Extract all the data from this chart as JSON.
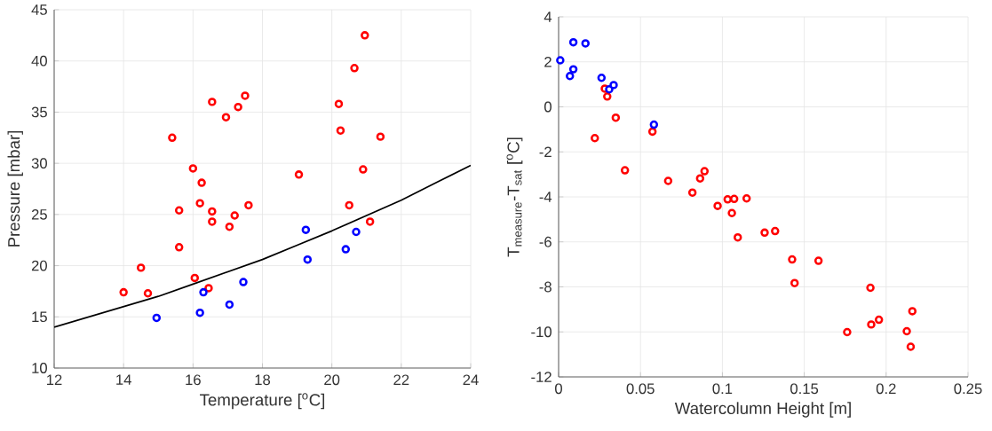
{
  "chart_data": [
    {
      "type": "scatter",
      "xlabel": "Temperature [$^{o}$C]",
      "ylabel": "Pressure [mbar]",
      "xlim": [
        12,
        24
      ],
      "ylim": [
        10,
        45
      ],
      "xticks": [
        12,
        14,
        16,
        18,
        20,
        22,
        24
      ],
      "yticks": [
        10,
        15,
        20,
        25,
        30,
        35,
        40,
        45
      ],
      "grid": true,
      "series": [
        {
          "type": "scatter",
          "marker": "circle",
          "color": "#ff0000",
          "x": [
            14,
            14.5,
            14.7,
            15.4,
            15.6,
            15.6,
            16.0,
            16.05,
            16.2,
            16.25,
            16.45,
            16.55,
            16.55,
            16.55,
            16.95,
            17.05,
            17.2,
            17.3,
            17.5,
            17.6,
            19.05,
            20.2,
            20.25,
            20.5,
            20.65,
            20.9,
            20.95,
            21.1,
            21.4
          ],
          "values": [
            17.4,
            19.8,
            17.3,
            32.5,
            25.4,
            21.8,
            29.5,
            18.8,
            26.1,
            28.1,
            17.8,
            36.0,
            25.3,
            24.3,
            34.5,
            23.8,
            24.9,
            35.5,
            36.6,
            25.9,
            28.9,
            35.8,
            33.2,
            25.9,
            39.3,
            29.4,
            42.5,
            24.3,
            32.6
          ]
        },
        {
          "type": "scatter",
          "marker": "circle",
          "color": "#0000ff",
          "x": [
            14.95,
            16.2,
            16.3,
            17.05,
            17.45,
            19.25,
            19.3,
            20.4,
            20.7
          ],
          "values": [
            14.9,
            15.4,
            17.4,
            16.2,
            18.4,
            23.5,
            20.6,
            21.6,
            23.3
          ]
        },
        {
          "type": "line",
          "color": "#000000",
          "x": [
            12,
            13,
            14,
            15,
            16,
            17,
            18,
            19,
            20,
            21,
            22,
            23,
            24
          ],
          "values": [
            14.0,
            15.0,
            16.0,
            17.0,
            18.2,
            19.4,
            20.6,
            22.0,
            23.4,
            24.9,
            26.4,
            28.1,
            29.8
          ]
        }
      ]
    },
    {
      "type": "scatter",
      "xlabel": "Watercolumn Height [m]",
      "ylabel": "T$_{measure}$-T$_{sat}$ [$^{o}$C]",
      "xlim": [
        0,
        0.25
      ],
      "ylim": [
        -12,
        4
      ],
      "xticks": [
        0,
        0.05,
        0.1,
        0.15,
        0.2,
        0.25
      ],
      "yticks": [
        -12,
        -10,
        -8,
        -6,
        -4,
        -2,
        0,
        2,
        4
      ],
      "grid": true,
      "marker": "circle",
      "series": [
        {
          "type": "scatter",
          "color": "#ff0000",
          "x": [
            0.0282,
            0.0297,
            0.0349,
            0.0221,
            0.0573,
            0.0405,
            0.0669,
            0.0817,
            0.0864,
            0.0891,
            0.0971,
            0.1032,
            0.1072,
            0.1058,
            0.1148,
            0.1094,
            0.1258,
            0.1322,
            0.1426,
            0.1587,
            0.1441,
            0.1904,
            0.1762,
            0.1909,
            0.1956,
            0.216,
            0.2126,
            0.215
          ],
          "values": [
            0.81,
            0.46,
            -0.48,
            -1.39,
            -1.1,
            -2.82,
            -3.29,
            -3.81,
            -3.18,
            -2.86,
            -4.4,
            -4.11,
            -4.09,
            -4.72,
            -4.07,
            -5.8,
            -5.59,
            -5.52,
            -6.78,
            -6.84,
            -7.83,
            -8.04,
            -10.01,
            -9.67,
            -9.46,
            -9.08,
            -9.97,
            -10.66
          ]
        },
        {
          "type": "scatter",
          "color": "#0000ff",
          "x": [
            0.001,
            0.009,
            0.0164,
            0.009,
            0.0069,
            0.0262,
            0.0309,
            0.0336,
            0.0582
          ],
          "values": [
            2.07,
            2.87,
            2.82,
            1.67,
            1.37,
            1.29,
            0.78,
            0.97,
            -0.79
          ]
        }
      ]
    }
  ]
}
